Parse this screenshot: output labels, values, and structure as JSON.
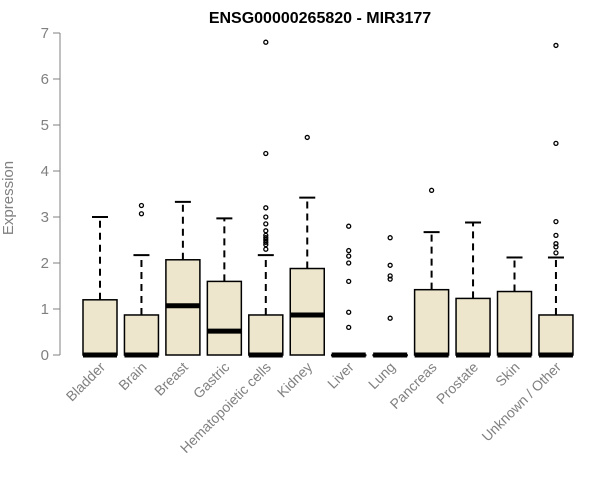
{
  "chart_data": {
    "type": "box",
    "title": "ENSG00000265820 - MIR3177",
    "ylabel": "Expression",
    "xlabel": "",
    "ylim": [
      0,
      7
    ],
    "yticks": [
      0,
      1,
      2,
      3,
      4,
      5,
      6,
      7
    ],
    "grid": false,
    "box_fill": "#EDE6CC",
    "categories": [
      "Bladder",
      "Brain",
      "Breast",
      "Gastric",
      "Hematopoietic cells",
      "Kidney",
      "Liver",
      "Lung",
      "Pancreas",
      "Prostate",
      "Skin",
      "Unknown / Other"
    ],
    "boxes": [
      {
        "q1": 0,
        "median": 0,
        "q3": 1.2,
        "whisker_low": 0,
        "whisker_high": 3.0,
        "outliers": []
      },
      {
        "q1": 0,
        "median": 0,
        "q3": 0.87,
        "whisker_low": 0,
        "whisker_high": 2.17,
        "outliers": [
          3.07,
          3.25
        ]
      },
      {
        "q1": 0,
        "median": 1.07,
        "q3": 2.07,
        "whisker_low": 0,
        "whisker_high": 3.33,
        "outliers": []
      },
      {
        "q1": 0,
        "median": 0.52,
        "q3": 1.6,
        "whisker_low": 0,
        "whisker_high": 2.97,
        "outliers": []
      },
      {
        "q1": 0,
        "median": 0,
        "q3": 0.87,
        "whisker_low": 0,
        "whisker_high": 2.17,
        "outliers": [
          2.3,
          2.4,
          2.45,
          2.5,
          2.55,
          2.6,
          2.7,
          2.85,
          3.0,
          3.2,
          4.38,
          6.8
        ]
      },
      {
        "q1": 0,
        "median": 0.87,
        "q3": 1.88,
        "whisker_low": 0,
        "whisker_high": 3.42,
        "outliers": [
          4.73
        ]
      },
      {
        "q1": 0,
        "median": 0,
        "q3": 0,
        "whisker_low": 0,
        "whisker_high": 0,
        "outliers": [
          0.6,
          0.93,
          1.6,
          2.0,
          2.15,
          2.27,
          2.8
        ]
      },
      {
        "q1": 0,
        "median": 0,
        "q3": 0,
        "whisker_low": 0,
        "whisker_high": 0,
        "outliers": [
          0.8,
          1.65,
          1.72,
          1.95,
          2.55
        ]
      },
      {
        "q1": 0,
        "median": 0,
        "q3": 1.42,
        "whisker_low": 0,
        "whisker_high": 2.67,
        "outliers": [
          3.58
        ]
      },
      {
        "q1": 0,
        "median": 0,
        "q3": 1.23,
        "whisker_low": 0,
        "whisker_high": 2.88,
        "outliers": []
      },
      {
        "q1": 0,
        "median": 0,
        "q3": 1.38,
        "whisker_low": 0,
        "whisker_high": 2.12,
        "outliers": []
      },
      {
        "q1": 0,
        "median": 0,
        "q3": 0.87,
        "whisker_low": 0,
        "whisker_high": 2.12,
        "outliers": [
          2.22,
          2.35,
          2.42,
          2.6,
          2.9,
          4.6,
          6.73
        ]
      }
    ]
  }
}
